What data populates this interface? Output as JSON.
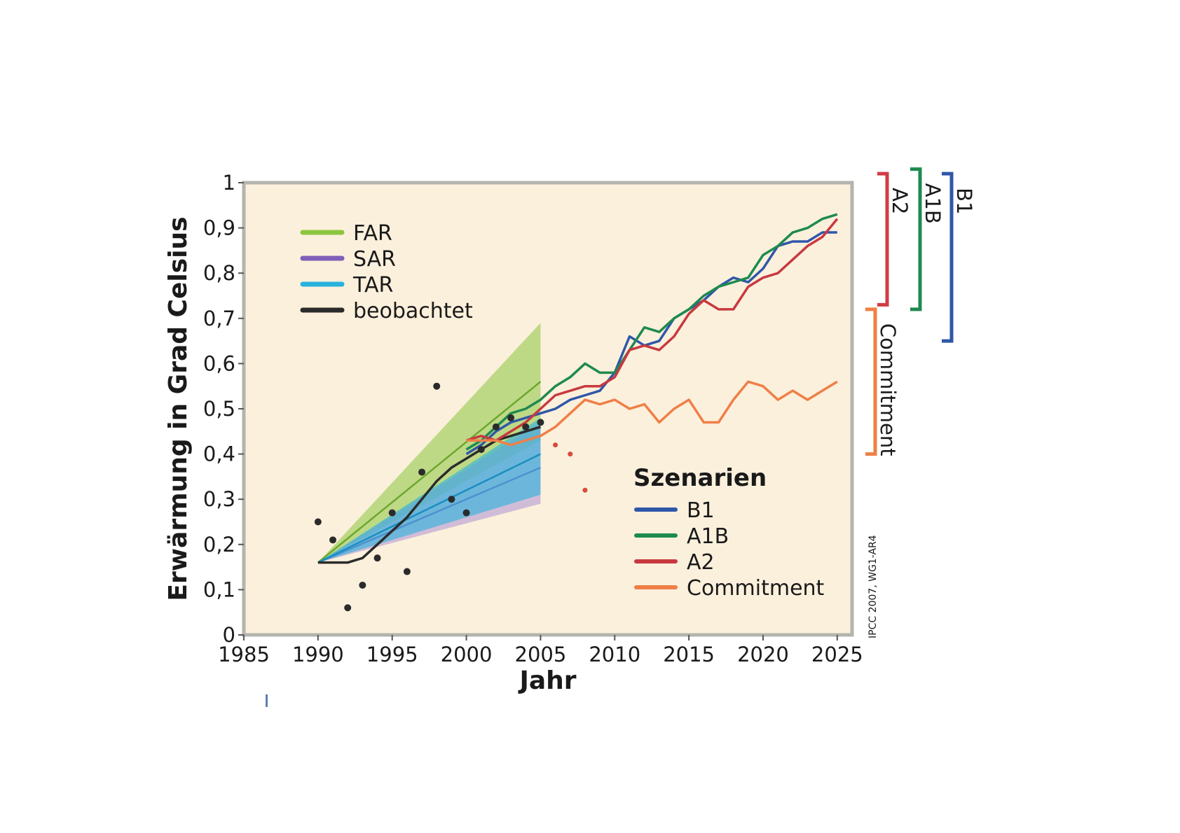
{
  "chart_data": {
    "type": "line",
    "xlabel": "Jahr",
    "ylabel": "Erwärmung in Grad Celsius",
    "xlim": [
      1985,
      2026
    ],
    "ylim": [
      0,
      1
    ],
    "x_ticks": [
      1985,
      1990,
      1995,
      2000,
      2005,
      2010,
      2015,
      2020,
      2025
    ],
    "y_ticks": [
      0,
      0.1,
      0.2,
      0.3,
      0.4,
      0.5,
      0.6,
      0.7,
      0.8,
      0.9,
      1
    ],
    "y_tick_labels": [
      "0",
      "0,1",
      "0,2",
      "0,3",
      "0,4",
      "0,5",
      "0,6",
      "0,7",
      "0,8",
      "0,9",
      "1"
    ],
    "background": "#fbf0dc",
    "legend_reports": [
      {
        "name": "FAR",
        "color": "#8cc63f"
      },
      {
        "name": "SAR",
        "color": "#7f5fb8"
      },
      {
        "name": "TAR",
        "color": "#29b2de"
      },
      {
        "name": "beobachtet",
        "color": "#2b2b2b"
      }
    ],
    "legend_scenarios_title": "Szenarien",
    "legend_scenarios": [
      {
        "name": "B1",
        "color": "#2f57a8"
      },
      {
        "name": "A1B",
        "color": "#1e8a4f"
      },
      {
        "name": "A2",
        "color": "#c8393f"
      },
      {
        "name": "Commitment",
        "color": "#ef7f47"
      }
    ],
    "bands": [
      {
        "name": "FAR",
        "color": "#8cc63f",
        "x": [
          1990,
          2005
        ],
        "lower": [
          0.16,
          0.43
        ],
        "upper": [
          0.16,
          0.69
        ],
        "center": [
          0.16,
          0.56
        ]
      },
      {
        "name": "SAR",
        "color": "#b69ad6",
        "x": [
          1990,
          2005
        ],
        "lower": [
          0.16,
          0.29
        ],
        "upper": [
          0.16,
          0.47
        ],
        "center": [
          0.16,
          0.37
        ]
      },
      {
        "name": "TAR",
        "color": "#29b2de",
        "x": [
          1990,
          2005
        ],
        "lower": [
          0.16,
          0.31
        ],
        "upper": [
          0.16,
          0.48
        ],
        "center": [
          0.16,
          0.4
        ]
      }
    ],
    "observed_smoothed": {
      "x": [
        1990,
        1991,
        1992,
        1993,
        1994,
        1995,
        1996,
        1997,
        1998,
        1999,
        2000,
        2001,
        2002,
        2003,
        2004,
        2005
      ],
      "y": [
        0.16,
        0.16,
        0.16,
        0.17,
        0.2,
        0.23,
        0.26,
        0.3,
        0.34,
        0.37,
        0.39,
        0.41,
        0.43,
        0.44,
        0.45,
        0.46
      ]
    },
    "observed_annual": {
      "x": [
        1990,
        1991,
        1992,
        1993,
        1994,
        1995,
        1996,
        1997,
        1998,
        1999,
        2000,
        2001,
        2002,
        2003,
        2004,
        2005
      ],
      "y": [
        0.25,
        0.21,
        0.06,
        0.11,
        0.17,
        0.27,
        0.14,
        0.36,
        0.55,
        0.3,
        0.27,
        0.41,
        0.46,
        0.48,
        0.46,
        0.47
      ]
    },
    "extra_points": {
      "x": [
        2006,
        2007,
        2008
      ],
      "y": [
        0.42,
        0.4,
        0.32
      ]
    },
    "series": [
      {
        "name": "B1",
        "color": "#2f57a8",
        "x": [
          2000,
          2001,
          2002,
          2003,
          2004,
          2005,
          2006,
          2007,
          2008,
          2009,
          2010,
          2011,
          2012,
          2013,
          2014,
          2015,
          2016,
          2017,
          2018,
          2019,
          2020,
          2021,
          2022,
          2023,
          2024,
          2025
        ],
        "y": [
          0.4,
          0.42,
          0.45,
          0.47,
          0.48,
          0.49,
          0.5,
          0.52,
          0.53,
          0.54,
          0.58,
          0.66,
          0.64,
          0.65,
          0.7,
          0.72,
          0.74,
          0.77,
          0.79,
          0.78,
          0.81,
          0.86,
          0.87,
          0.87,
          0.89,
          0.89
        ]
      },
      {
        "name": "A1B",
        "color": "#1e8a4f",
        "x": [
          2000,
          2001,
          2002,
          2003,
          2004,
          2005,
          2006,
          2007,
          2008,
          2009,
          2010,
          2011,
          2012,
          2013,
          2014,
          2015,
          2016,
          2017,
          2018,
          2019,
          2020,
          2021,
          2022,
          2023,
          2024,
          2025
        ],
        "y": [
          0.41,
          0.43,
          0.46,
          0.49,
          0.5,
          0.52,
          0.55,
          0.57,
          0.6,
          0.58,
          0.58,
          0.63,
          0.68,
          0.67,
          0.7,
          0.72,
          0.75,
          0.77,
          0.78,
          0.79,
          0.84,
          0.86,
          0.89,
          0.9,
          0.92,
          0.93
        ]
      },
      {
        "name": "A2",
        "color": "#c8393f",
        "x": [
          2000,
          2001,
          2002,
          2003,
          2004,
          2005,
          2006,
          2007,
          2008,
          2009,
          2010,
          2011,
          2012,
          2013,
          2014,
          2015,
          2016,
          2017,
          2018,
          2019,
          2020,
          2021,
          2022,
          2023,
          2024,
          2025
        ],
        "y": [
          0.43,
          0.44,
          0.43,
          0.45,
          0.47,
          0.5,
          0.53,
          0.54,
          0.55,
          0.55,
          0.57,
          0.63,
          0.64,
          0.63,
          0.66,
          0.71,
          0.74,
          0.72,
          0.72,
          0.77,
          0.79,
          0.8,
          0.83,
          0.86,
          0.88,
          0.92
        ]
      },
      {
        "name": "Commitment",
        "color": "#ef7f47",
        "x": [
          2000,
          2001,
          2002,
          2003,
          2004,
          2005,
          2006,
          2007,
          2008,
          2009,
          2010,
          2011,
          2012,
          2013,
          2014,
          2015,
          2016,
          2017,
          2018,
          2019,
          2020,
          2021,
          2022,
          2023,
          2024,
          2025
        ],
        "y": [
          0.43,
          0.43,
          0.43,
          0.42,
          0.43,
          0.44,
          0.46,
          0.49,
          0.52,
          0.51,
          0.52,
          0.5,
          0.51,
          0.47,
          0.5,
          0.52,
          0.47,
          0.47,
          0.52,
          0.56,
          0.55,
          0.52,
          0.54,
          0.52,
          0.54,
          0.56
        ]
      }
    ],
    "brackets": [
      {
        "label": "A2",
        "color": "#d23c45",
        "y_range": [
          0.73,
          1.02
        ]
      },
      {
        "label": "A1B",
        "color": "#1e8a4f",
        "y_range": [
          0.72,
          1.03
        ]
      },
      {
        "label": "B1",
        "color": "#2f57a8",
        "y_range": [
          0.65,
          1.02
        ]
      },
      {
        "label": "Commitment",
        "color": "#ef7f47",
        "y_range": [
          0.4,
          0.72
        ]
      }
    ],
    "source": "IPCC 2007, WG1-AR4"
  }
}
